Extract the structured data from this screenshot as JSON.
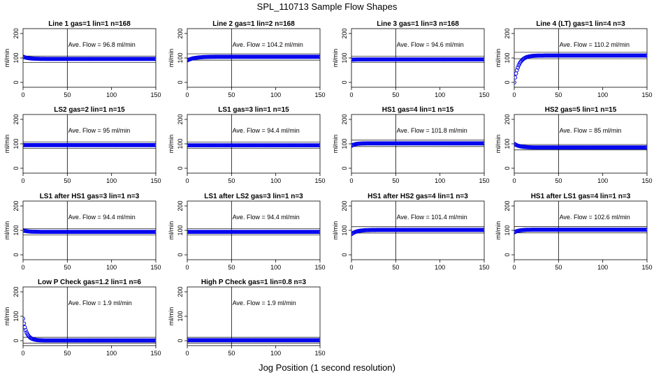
{
  "page": {
    "title": "SPL_110713  Sample Flow Shapes",
    "xlabel": "Jog Position (1 second resolution)"
  },
  "chart_data": [
    {
      "type": "scatter",
      "title": "Line 1 gas=1 lin=1 n=168",
      "ylabel": "ml/min",
      "annotation": "Ave. Flow = 96.8  ml/min",
      "xlim": [
        0,
        150
      ],
      "ylim": [
        -20,
        220
      ],
      "xticks": [
        0,
        50,
        100,
        150
      ],
      "yticks": [
        0,
        100,
        200
      ],
      "vline": 50,
      "hlines": [
        82,
        108
      ],
      "color": "#0000ee",
      "shape": {
        "start": 105,
        "level": 96,
        "tau": 6
      }
    },
    {
      "type": "scatter",
      "title": "Line 2 gas=1 lin=2 n=168",
      "ylabel": "ml/min",
      "annotation": "Ave. Flow = 104.2  ml/min",
      "xlim": [
        0,
        150
      ],
      "ylim": [
        -20,
        220
      ],
      "xticks": [
        0,
        50,
        100,
        150
      ],
      "yticks": [
        0,
        100,
        200
      ],
      "vline": 50,
      "hlines": [
        91,
        117
      ],
      "color": "#0000ee",
      "shape": {
        "start": 90,
        "level": 105,
        "tau": 8
      }
    },
    {
      "type": "scatter",
      "title": "Line 3 gas=1 lin=3 n=168",
      "ylabel": "ml/min",
      "annotation": "Ave. Flow = 94.6  ml/min",
      "xlim": [
        0,
        150
      ],
      "ylim": [
        -20,
        220
      ],
      "xticks": [
        0,
        50,
        100,
        150
      ],
      "yticks": [
        0,
        100,
        200
      ],
      "vline": 50,
      "hlines": [
        82,
        107
      ],
      "color": "#0000ee",
      "shape": {
        "start": 93,
        "level": 94,
        "tau": 5
      }
    },
    {
      "type": "scatter",
      "title": "Line 4 (LT) gas=1 lin=4 n=3",
      "ylabel": "ml/min",
      "annotation": "Ave. Flow = 110.2  ml/min",
      "xlim": [
        0,
        150
      ],
      "ylim": [
        -20,
        220
      ],
      "xticks": [
        0,
        50,
        100,
        150
      ],
      "yticks": [
        0,
        100,
        200
      ],
      "vline": 50,
      "hlines": [
        97,
        123
      ],
      "color": "#0000ee",
      "shape": {
        "start": 0,
        "level": 110,
        "tau": 5
      }
    },
    {
      "type": "scatter",
      "title": "LS2 gas=2 lin=1 n=15",
      "ylabel": "ml/min",
      "annotation": "Ave. Flow = 95  ml/min",
      "xlim": [
        0,
        150
      ],
      "ylim": [
        -20,
        220
      ],
      "xticks": [
        0,
        50,
        100,
        150
      ],
      "yticks": [
        0,
        100,
        200
      ],
      "vline": 50,
      "hlines": [
        82,
        108
      ],
      "color": "#0000ee",
      "shape": {
        "start": 95,
        "level": 95,
        "tau": 5
      }
    },
    {
      "type": "scatter",
      "title": "LS1 gas=3 lin=1 n=15",
      "ylabel": "ml/min",
      "annotation": "Ave. Flow = 94.4  ml/min",
      "xlim": [
        0,
        150
      ],
      "ylim": [
        -20,
        220
      ],
      "xticks": [
        0,
        50,
        100,
        150
      ],
      "yticks": [
        0,
        100,
        200
      ],
      "vline": 50,
      "hlines": [
        82,
        107
      ],
      "color": "#0000ee",
      "shape": {
        "start": 94,
        "level": 94,
        "tau": 5
      }
    },
    {
      "type": "scatter",
      "title": "HS1 gas=4 lin=1 n=15",
      "ylabel": "ml/min",
      "annotation": "Ave. Flow = 101.8  ml/min",
      "xlim": [
        0,
        150
      ],
      "ylim": [
        -20,
        220
      ],
      "xticks": [
        0,
        50,
        100,
        150
      ],
      "yticks": [
        0,
        100,
        200
      ],
      "vline": 50,
      "hlines": [
        89,
        115
      ],
      "color": "#0000ee",
      "shape": {
        "start": 92,
        "level": 102,
        "tau": 4
      }
    },
    {
      "type": "scatter",
      "title": "HS2 gas=5 lin=1 n=15",
      "ylabel": "ml/min",
      "annotation": "Ave. Flow = 85  ml/min",
      "xlim": [
        0,
        150
      ],
      "ylim": [
        -20,
        220
      ],
      "xticks": [
        0,
        50,
        100,
        150
      ],
      "yticks": [
        0,
        100,
        200
      ],
      "vline": 50,
      "hlines": [
        75,
        97
      ],
      "color": "#0000ee",
      "shape": {
        "start": 100,
        "level": 85,
        "tau": 6
      }
    },
    {
      "type": "scatter",
      "title": "LS1 after HS1 gas=3 lin=1 n=3",
      "ylabel": "ml/min",
      "annotation": "Ave. Flow = 94.4  ml/min",
      "xlim": [
        0,
        150
      ],
      "ylim": [
        -20,
        220
      ],
      "xticks": [
        0,
        50,
        100,
        150
      ],
      "yticks": [
        0,
        100,
        200
      ],
      "vline": 50,
      "hlines": [
        82,
        107
      ],
      "color": "#0000ee",
      "shape": {
        "start": 100,
        "level": 94,
        "tau": 5
      }
    },
    {
      "type": "scatter",
      "title": "LS1 after LS2 gas=3 lin=1 n=3",
      "ylabel": "ml/min",
      "annotation": "Ave. Flow = 94.4  ml/min",
      "xlim": [
        0,
        150
      ],
      "ylim": [
        -20,
        220
      ],
      "xticks": [
        0,
        50,
        100,
        150
      ],
      "yticks": [
        0,
        100,
        200
      ],
      "vline": 50,
      "hlines": [
        82,
        107
      ],
      "color": "#0000ee",
      "shape": {
        "start": 94,
        "level": 94,
        "tau": 5
      }
    },
    {
      "type": "scatter",
      "title": "HS1 after HS2 gas=4 lin=1 n=3",
      "ylabel": "ml/min",
      "annotation": "Ave. Flow = 101.4  ml/min",
      "xlim": [
        0,
        150
      ],
      "ylim": [
        -20,
        220
      ],
      "xticks": [
        0,
        50,
        100,
        150
      ],
      "yticks": [
        0,
        100,
        200
      ],
      "vline": 50,
      "hlines": [
        89,
        115
      ],
      "color": "#0000ee",
      "shape": {
        "start": 85,
        "level": 102,
        "tau": 6
      }
    },
    {
      "type": "scatter",
      "title": "HS1 after LS1 gas=4 lin=1 n=3",
      "ylabel": "ml/min",
      "annotation": "Ave. Flow = 102.6  ml/min",
      "xlim": [
        0,
        150
      ],
      "ylim": [
        -20,
        220
      ],
      "xticks": [
        0,
        50,
        100,
        150
      ],
      "yticks": [
        0,
        100,
        200
      ],
      "vline": 50,
      "hlines": [
        90,
        116
      ],
      "color": "#0000ee",
      "shape": {
        "start": 92,
        "level": 103,
        "tau": 5
      }
    },
    {
      "type": "scatter",
      "title": "Low P Check gas=1.2 lin=1 n=6",
      "ylabel": "ml/min",
      "annotation": "Ave. Flow = 1.9  ml/min",
      "xlim": [
        0,
        150
      ],
      "ylim": [
        -20,
        220
      ],
      "xticks": [
        0,
        50,
        100,
        150
      ],
      "yticks": [
        0,
        100,
        200
      ],
      "vline": 50,
      "hlines": [
        -10,
        14
      ],
      "color": "#0000ee",
      "shape": {
        "start": 90,
        "level": 1,
        "tau": 4
      }
    },
    {
      "type": "scatter",
      "title": "High P Check gas=1 lin=0.8 n=3",
      "ylabel": "ml/min",
      "annotation": "Ave. Flow = 1.9  ml/min",
      "xlim": [
        0,
        150
      ],
      "ylim": [
        -20,
        220
      ],
      "xticks": [
        0,
        50,
        100,
        150
      ],
      "yticks": [
        0,
        100,
        200
      ],
      "vline": 50,
      "hlines": [
        -10,
        14
      ],
      "color": "#0000ee",
      "shape": {
        "start": 2,
        "level": 2,
        "tau": 4
      }
    }
  ]
}
